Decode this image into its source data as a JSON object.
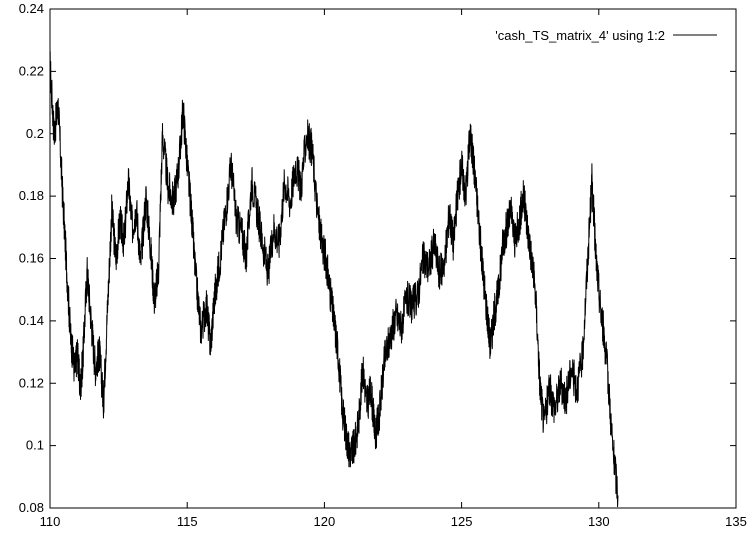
{
  "chart_data": {
    "type": "line",
    "title": "",
    "xlabel": "",
    "ylabel": "",
    "xlim": [
      110,
      135
    ],
    "ylim": [
      0.08,
      0.24
    ],
    "xticks": [
      "110",
      "115",
      "120",
      "125",
      "130",
      "135"
    ],
    "yticks": [
      "0.08",
      "0.1",
      "0.12",
      "0.14",
      "0.16",
      "0.18",
      "0.2",
      "0.22",
      "0.24"
    ],
    "grid": false,
    "legend_position": "top-right",
    "series": [
      {
        "name": "'cash_TS_matrix_4' using 1:2",
        "color": "#000000",
        "x": [
          110.0,
          110.15,
          110.3,
          110.45,
          110.6,
          110.75,
          110.9,
          111.0,
          111.1,
          111.2,
          111.35,
          111.5,
          111.65,
          111.8,
          111.95,
          112.1,
          112.25,
          112.4,
          112.55,
          112.7,
          112.85,
          113.0,
          113.15,
          113.3,
          113.5,
          113.65,
          113.8,
          113.95,
          114.1,
          114.3,
          114.5,
          114.7,
          114.85,
          115.0,
          115.15,
          115.3,
          115.5,
          115.7,
          115.85,
          116.0,
          116.2,
          116.4,
          116.6,
          116.8,
          117.0,
          117.15,
          117.35,
          117.55,
          117.75,
          117.95,
          118.15,
          118.35,
          118.55,
          118.75,
          118.95,
          119.15,
          119.35,
          119.55,
          119.75,
          119.9,
          120.05,
          120.2,
          120.35,
          120.5,
          120.65,
          120.8,
          120.95,
          121.1,
          121.25,
          121.4,
          121.55,
          121.7,
          121.85,
          122.0,
          122.2,
          122.4,
          122.6,
          122.8,
          123.0,
          123.2,
          123.4,
          123.6,
          123.8,
          124.0,
          124.2,
          124.4,
          124.55,
          124.7,
          124.85,
          125.0,
          125.15,
          125.3,
          125.45,
          125.6,
          125.75,
          125.9,
          126.05,
          126.2,
          126.35,
          126.5,
          126.65,
          126.8,
          126.95,
          127.1,
          127.25,
          127.4,
          127.55,
          127.7,
          127.85,
          128.0,
          128.2,
          128.4,
          128.6,
          128.8,
          129.0,
          129.2,
          129.4,
          129.6,
          129.75,
          129.9,
          130.05,
          130.2,
          130.35,
          130.5,
          130.7
        ],
        "y": [
          0.222,
          0.2,
          0.209,
          0.182,
          0.158,
          0.135,
          0.124,
          0.13,
          0.118,
          0.128,
          0.156,
          0.14,
          0.125,
          0.13,
          0.114,
          0.145,
          0.175,
          0.16,
          0.172,
          0.165,
          0.185,
          0.17,
          0.176,
          0.158,
          0.18,
          0.165,
          0.147,
          0.155,
          0.2,
          0.183,
          0.178,
          0.19,
          0.208,
          0.19,
          0.175,
          0.155,
          0.137,
          0.145,
          0.132,
          0.148,
          0.16,
          0.175,
          0.19,
          0.172,
          0.168,
          0.16,
          0.185,
          0.175,
          0.165,
          0.155,
          0.17,
          0.165,
          0.185,
          0.178,
          0.19,
          0.183,
          0.2,
          0.195,
          0.175,
          0.165,
          0.16,
          0.15,
          0.14,
          0.13,
          0.112,
          0.103,
          0.097,
          0.1,
          0.108,
          0.125,
          0.113,
          0.118,
          0.103,
          0.11,
          0.128,
          0.135,
          0.142,
          0.138,
          0.147,
          0.145,
          0.148,
          0.16,
          0.157,
          0.165,
          0.155,
          0.16,
          0.175,
          0.165,
          0.18,
          0.19,
          0.18,
          0.2,
          0.19,
          0.175,
          0.158,
          0.145,
          0.132,
          0.143,
          0.15,
          0.165,
          0.17,
          0.175,
          0.165,
          0.172,
          0.18,
          0.17,
          0.16,
          0.148,
          0.12,
          0.107,
          0.118,
          0.112,
          0.12,
          0.115,
          0.125,
          0.118,
          0.128,
          0.16,
          0.185,
          0.16,
          0.145,
          0.135,
          0.12,
          0.1,
          0.084
        ]
      }
    ]
  }
}
